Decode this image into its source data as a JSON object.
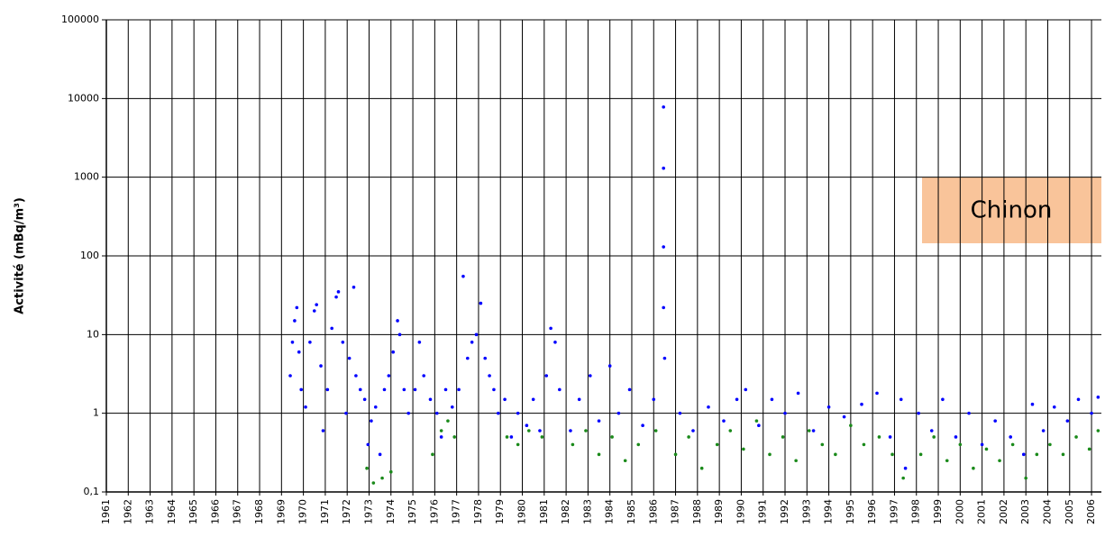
{
  "chart_data": {
    "type": "scatter",
    "y_label": "Activité (mBq/m³)",
    "annotation": "Chinon",
    "ylog": true,
    "grid": true,
    "xlim": [
      1961,
      2006.45
    ],
    "ylim": [
      0.1,
      100000
    ],
    "yticks": [
      {
        "value": 0.1,
        "label": "0,1"
      },
      1,
      10,
      100,
      1000,
      10000,
      100000
    ],
    "xticks": [
      1961,
      1962,
      1963,
      1964,
      1965,
      1966,
      1967,
      1968,
      1969,
      1970,
      1971,
      1972,
      1973,
      1974,
      1975,
      1976,
      1977,
      1978,
      1979,
      1980,
      1981,
      1982,
      1983,
      1984,
      1985,
      1986,
      1987,
      1988,
      1989,
      1990,
      1991,
      1992,
      1993,
      1994,
      1995,
      1996,
      1997,
      1998,
      1999,
      2000,
      2001,
      2002,
      2003,
      2004,
      2005,
      2006
    ],
    "series": [
      {
        "color": "#0000ff",
        "x": [
          1969.4,
          1969.5,
          1969.6,
          1969.7,
          1969.8,
          1969.9,
          1970.1,
          1970.3,
          1970.5,
          1970.6,
          1970.8,
          1970.9,
          1971.1,
          1971.3,
          1971.5,
          1971.6,
          1971.8,
          1971.95,
          1972.1,
          1972.3,
          1972.4,
          1972.6,
          1972.8,
          1972.95,
          1973.1,
          1973.3,
          1973.5,
          1973.7,
          1973.9,
          1974.1,
          1974.3,
          1974.4,
          1974.6,
          1974.8,
          1975.1,
          1975.3,
          1975.5,
          1975.8,
          1976.1,
          1976.3,
          1976.5,
          1976.8,
          1977.1,
          1977.3,
          1977.5,
          1977.7,
          1977.9,
          1978.1,
          1978.3,
          1978.5,
          1978.7,
          1978.9,
          1979.2,
          1979.5,
          1979.8,
          1980.2,
          1980.5,
          1980.8,
          1981.1,
          1981.3,
          1981.5,
          1981.7,
          1982.2,
          1982.6,
          1983.1,
          1983.5,
          1984.0,
          1984.4,
          1984.9,
          1985.5,
          1986.0,
          1986.45,
          1986.45,
          1986.45,
          1986.45,
          1986.5,
          1987.2,
          1987.8,
          1988.5,
          1989.2,
          1989.8,
          1990.2,
          1990.8,
          1991.4,
          1992.0,
          1992.6,
          1993.3,
          1994.0,
          1994.7,
          1995.5,
          1996.2,
          1996.8,
          1997.3,
          1997.5,
          1998.1,
          1998.7,
          1999.2,
          1999.8,
          2000.4,
          2001.0,
          2001.6,
          2002.3,
          2002.9,
          2003.3,
          2003.8,
          2004.3,
          2004.9,
          2005.4,
          2006.0,
          2006.3
        ],
        "values": [
          3,
          8,
          15,
          22,
          6,
          2,
          1.2,
          8,
          20,
          24,
          4,
          0.6,
          2,
          12,
          30,
          35,
          8,
          1,
          5,
          40,
          3,
          2,
          1.5,
          0.4,
          0.8,
          1.2,
          0.3,
          2,
          3,
          6,
          15,
          10,
          2,
          1,
          2,
          8,
          3,
          1.5,
          1,
          0.5,
          2,
          1.2,
          2,
          55,
          5,
          8,
          10,
          25,
          5,
          3,
          2,
          1,
          1.5,
          0.5,
          1,
          0.7,
          1.5,
          0.6,
          3,
          12,
          8,
          2,
          0.6,
          1.5,
          3,
          0.8,
          4,
          1,
          2,
          0.7,
          1.5,
          7800,
          1300,
          130,
          22,
          5,
          1,
          0.6,
          1.2,
          0.8,
          1.5,
          2,
          0.7,
          1.5,
          1,
          1.8,
          0.6,
          1.2,
          0.9,
          1.3,
          1.8,
          0.5,
          1.5,
          0.2,
          1,
          0.6,
          1.5,
          0.5,
          1,
          0.4,
          0.8,
          0.5,
          0.3,
          1.3,
          0.6,
          1.2,
          0.8,
          1.5,
          1,
          1.6
        ]
      },
      {
        "color": "#1a8a1a",
        "x": [
          1972.9,
          1973.2,
          1973.6,
          1974.0,
          1975.9,
          1976.3,
          1976.6,
          1976.9,
          1979.3,
          1979.8,
          1980.3,
          1980.9,
          1982.3,
          1982.9,
          1983.5,
          1984.1,
          1984.7,
          1985.3,
          1986.1,
          1987.0,
          1987.6,
          1988.2,
          1988.9,
          1989.5,
          1990.1,
          1990.7,
          1991.3,
          1991.9,
          1992.5,
          1993.1,
          1993.7,
          1994.3,
          1995.0,
          1995.6,
          1996.3,
          1996.9,
          1997.4,
          1998.2,
          1998.8,
          1999.4,
          2000.0,
          2000.6,
          2001.2,
          2001.8,
          2002.4,
          2003.0,
          2003.5,
          2004.1,
          2004.7,
          2005.3,
          2005.9,
          2006.3
        ],
        "values": [
          0.2,
          0.13,
          0.15,
          0.18,
          0.3,
          0.6,
          0.8,
          0.5,
          0.5,
          0.4,
          0.6,
          0.5,
          0.4,
          0.6,
          0.3,
          0.5,
          0.25,
          0.4,
          0.6,
          0.3,
          0.5,
          0.2,
          0.4,
          0.6,
          0.35,
          0.8,
          0.3,
          0.5,
          0.25,
          0.6,
          0.4,
          0.3,
          0.7,
          0.4,
          0.5,
          0.3,
          0.15,
          0.3,
          0.5,
          0.25,
          0.4,
          0.2,
          0.35,
          0.25,
          0.4,
          0.15,
          0.3,
          0.4,
          0.3,
          0.5,
          0.35,
          0.6
        ]
      }
    ]
  }
}
